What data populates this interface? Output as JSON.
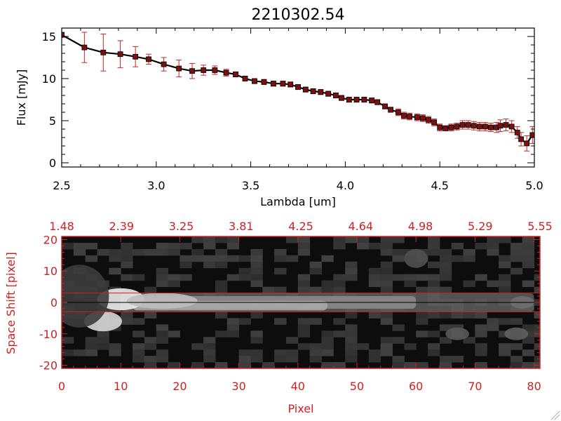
{
  "chart_data": [
    {
      "type": "line",
      "title": "2210302.54",
      "xlabel": "Lambda [um]",
      "ylabel": "Flux [mJy]",
      "xlim": [
        2.5,
        5.0
      ],
      "ylim": [
        -0.5,
        16
      ],
      "xticks": [
        "2.5",
        "3.0",
        "3.5",
        "4.0",
        "4.5",
        "5.0"
      ],
      "yticks": [
        "0",
        "5",
        "10",
        "15"
      ],
      "grid": false,
      "colors": {
        "line": "#000000",
        "markers": "#7a1010",
        "errorbars": "#cc2222"
      },
      "series": [
        {
          "x": [
            2.5,
            2.62,
            2.72,
            2.81,
            2.89,
            2.96,
            3.04,
            3.12,
            3.19,
            3.25,
            3.31,
            3.37,
            3.42,
            3.47,
            3.52,
            3.57,
            3.62,
            3.67,
            3.71,
            3.75,
            3.79,
            3.83,
            3.87,
            3.91,
            3.95,
            3.98,
            4.02,
            4.06,
            4.1,
            4.14,
            4.17,
            4.21,
            4.24,
            4.28,
            4.31,
            4.34,
            4.38,
            4.41,
            4.44,
            4.47,
            4.5,
            4.53,
            4.56,
            4.59,
            4.62,
            4.65,
            4.68,
            4.71,
            4.74,
            4.77,
            4.8,
            4.82,
            4.85,
            4.88,
            4.91,
            4.93,
            4.96,
            4.99
          ],
          "y": [
            15.2,
            13.7,
            13.1,
            12.9,
            12.6,
            12.3,
            11.7,
            11.2,
            10.9,
            11.0,
            11.0,
            10.7,
            10.5,
            10.0,
            9.7,
            9.6,
            9.4,
            9.4,
            9.3,
            9.0,
            8.7,
            8.5,
            8.4,
            8.2,
            8.0,
            7.7,
            7.5,
            7.5,
            7.5,
            7.4,
            7.2,
            6.7,
            6.3,
            6.0,
            5.6,
            5.5,
            5.4,
            5.3,
            5.1,
            4.8,
            4.2,
            4.1,
            4.2,
            4.3,
            4.5,
            4.5,
            4.4,
            4.3,
            4.3,
            4.2,
            4.2,
            4.4,
            4.5,
            4.3,
            3.6,
            2.8,
            2.3,
            3.3
          ],
          "yerr": [
            0.3,
            1.8,
            2.2,
            1.6,
            1.2,
            0.6,
            0.8,
            1.0,
            0.9,
            0.6,
            0.5,
            0.4,
            0.3,
            0.3,
            0.3,
            0.3,
            0.3,
            0.3,
            0.3,
            0.3,
            0.3,
            0.3,
            0.3,
            0.3,
            0.3,
            0.3,
            0.3,
            0.3,
            0.3,
            0.3,
            0.3,
            0.3,
            0.3,
            0.4,
            0.4,
            0.4,
            0.4,
            0.4,
            0.4,
            0.4,
            0.4,
            0.3,
            0.4,
            0.4,
            0.5,
            0.5,
            0.5,
            0.5,
            0.5,
            0.5,
            0.6,
            0.7,
            0.7,
            0.7,
            0.7,
            0.8,
            0.9,
            1.0
          ]
        }
      ]
    },
    {
      "type": "heatmap",
      "xlabel": "Pixel",
      "ylabel": "Space Shift [pixel]",
      "xlim": [
        0,
        81
      ],
      "ylim": [
        -21,
        21
      ],
      "xticks": [
        "0",
        "10",
        "20",
        "30",
        "40",
        "50",
        "60",
        "70",
        "80"
      ],
      "yticks": [
        "-20",
        "-10",
        "0",
        "10",
        "20"
      ],
      "top_axis_label": "",
      "top_axis_ticks": [
        "1.48",
        "2.39",
        "3.25",
        "3.81",
        "4.25",
        "4.64",
        "4.98",
        "5.29",
        "5.55"
      ],
      "extraction_window": [
        -3,
        3
      ],
      "colors": {
        "axes": "#cc2222",
        "extraction_lines": "#cc2222",
        "colormap": "grayscale"
      },
      "features": [
        {
          "description_units": "pixel",
          "x": [
            8,
            80
          ],
          "y": 0,
          "trace": "bright horizontal spectral trace"
        },
        {
          "x": 7,
          "y": -6,
          "source": "secondary bright blob"
        }
      ]
    }
  ]
}
